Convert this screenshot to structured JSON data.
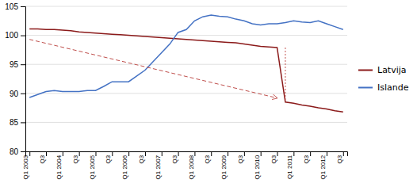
{
  "chart_data": {
    "type": "line",
    "categories": [
      "Q1 2003",
      null,
      "Q3",
      null,
      "Q1 2004",
      null,
      "Q3",
      null,
      "Q1 2005",
      null,
      "Q3",
      null,
      "Q1 2006",
      null,
      "Q3",
      null,
      "Q1 2007",
      null,
      "Q3",
      null,
      "Q1 2008",
      null,
      "Q3",
      null,
      "Q1 2009",
      null,
      "Q3",
      null,
      "Q1 2010",
      null,
      "Q3",
      null,
      "Q1 2011",
      null,
      "Q3",
      null,
      "Q1 2012",
      null,
      "Q3"
    ],
    "series": [
      {
        "name": "Latvija",
        "color": "#8B1A1A",
        "values": [
          101.1,
          101.1,
          101.0,
          101.0,
          100.9,
          100.8,
          100.6,
          100.5,
          100.4,
          100.3,
          100.2,
          100.1,
          100.0,
          99.9,
          99.8,
          99.7,
          99.6,
          99.5,
          99.4,
          99.3,
          99.2,
          99.1,
          99.0,
          98.9,
          98.8,
          98.7,
          98.5,
          98.3,
          98.1,
          98.0,
          97.9,
          88.5,
          88.3,
          88.0,
          87.8,
          87.5,
          87.3,
          87.0,
          86.8
        ]
      },
      {
        "name": "Islande",
        "color": "#4472C4",
        "values": [
          89.3,
          89.8,
          90.3,
          90.5,
          90.3,
          90.3,
          90.3,
          90.5,
          90.5,
          91.2,
          92.0,
          92.0,
          92.0,
          93.0,
          94.0,
          95.5,
          97.0,
          98.5,
          100.5,
          101.0,
          102.5,
          103.2,
          103.5,
          103.3,
          103.2,
          102.8,
          102.5,
          102.0,
          101.8,
          102.0,
          102.0,
          102.2,
          102.5,
          102.3,
          102.2,
          102.5,
          102.0,
          101.5,
          101.0
        ]
      },
      {
        "color": "#C0504D",
        "line_style": "dashed",
        "marker": "arrow",
        "x": [
          0,
          30
        ],
        "values": [
          99.3,
          89.2
        ]
      },
      {
        "color": "#C0504D",
        "line_style": "dotted",
        "x": [
          31,
          31
        ],
        "values": [
          97.9,
          88.6
        ]
      }
    ],
    "ylim": [
      80,
      105
    ],
    "yticks": [
      80,
      85,
      90,
      95,
      100,
      105
    ],
    "grid": true,
    "legend": "right"
  }
}
